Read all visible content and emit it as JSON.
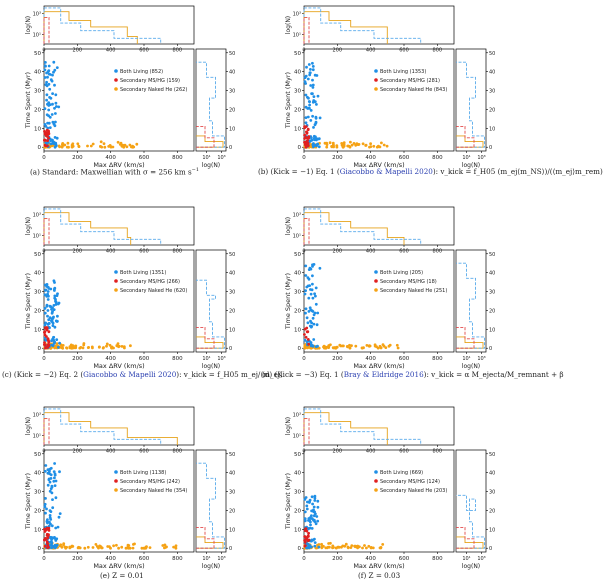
{
  "figure": {
    "xlabel": "Max ΔRV (km/s)",
    "ylabel_main": "Time Spent (Myr)",
    "ylabel_top": "log(N)",
    "xlabel_side": "log(N)",
    "colors": {
      "both_living": "#1f8fe6",
      "ms_hg": "#e02020",
      "naked_he": "#f5a214",
      "hist_he": "#e6a21a",
      "hist_both": "#58aaeb",
      "hist_ms": "#e24a4a"
    }
  },
  "captions": {
    "a": {
      "pre": "(a) Standard: Maxwellian with σ = 256 km s",
      "post": "",
      "cite": ""
    },
    "b": {
      "pre": "(b) (Kick = −1) Eq. 1 (",
      "cite": "Giacobbo & Mapelli 2020",
      "post": "): v_kick = f_H05 (m_ej⟨m_NS⟩)/(⟨m_ej⟩m_rem)"
    },
    "c": {
      "pre": "(c) (Kick = −2) Eq. 2 (",
      "cite": "Giacobbo & Mapelli 2020",
      "post": "): v_kick = f_H05 m_ej/⟨m_ej⟩"
    },
    "d": {
      "pre": "(d) (Kick = −3) Eq. 1 (",
      "cite": "Bray & Eldridge 2016",
      "post": "): v_kick = α M_ejecta/M_remnant + β"
    },
    "e": {
      "pre": "(e) Z = 0.01",
      "cite": "",
      "post": ""
    },
    "f": {
      "pre": "(f) Z = 0.03",
      "cite": "",
      "post": ""
    }
  },
  "chart_data": [
    {
      "type": "scatter",
      "panel": "a",
      "xlabel": "Max ΔRV (km/s)",
      "ylabel": "Time Spent (Myr)",
      "xlim": [
        0,
        900
      ],
      "ylim": [
        -2,
        52
      ],
      "xticks": [
        0,
        200,
        400,
        600,
        800
      ],
      "yticks": [
        0,
        10,
        20,
        30,
        40,
        50
      ],
      "series": [
        {
          "name": "Both Living (852)",
          "color": "#1f8fe6",
          "x_range": [
            5,
            100
          ],
          "y_range": [
            0,
            45
          ],
          "n": 80
        },
        {
          "name": "Secondary MS/HG (159)",
          "color": "#e02020",
          "x_range": [
            2,
            30
          ],
          "y_range": [
            0,
            11
          ],
          "n": 25
        },
        {
          "name": "Secondary Naked He (262)",
          "color": "#f5a214",
          "x_range": [
            5,
            560
          ],
          "y_range": [
            0,
            3
          ],
          "n": 90
        }
      ],
      "top_hist_ylabel": "log(N)",
      "side_hist_xlabel": "log(N)"
    },
    {
      "type": "scatter",
      "panel": "b",
      "xlabel": "Max ΔRV (km/s)",
      "ylabel": "Time Spent (Myr)",
      "xlim": [
        0,
        900
      ],
      "ylim": [
        -2,
        52
      ],
      "xticks": [
        0,
        200,
        400,
        600,
        800
      ],
      "yticks": [
        0,
        10,
        20,
        30,
        40,
        50
      ],
      "series": [
        {
          "name": "Both Living (1353)",
          "color": "#1f8fe6",
          "x_range": [
            5,
            100
          ],
          "y_range": [
            0,
            45
          ],
          "n": 90
        },
        {
          "name": "Secondary MS/HG (281)",
          "color": "#e02020",
          "x_range": [
            2,
            30
          ],
          "y_range": [
            0,
            11
          ],
          "n": 25
        },
        {
          "name": "Secondary Naked He (843)",
          "color": "#f5a214",
          "x_range": [
            5,
            500
          ],
          "y_range": [
            0,
            3
          ],
          "n": 100
        }
      ],
      "top_hist_ylabel": "log(N)",
      "side_hist_xlabel": "log(N)"
    },
    {
      "type": "scatter",
      "panel": "c",
      "xlabel": "Max ΔRV (km/s)",
      "ylabel": "Time Spent (Myr)",
      "xlim": [
        0,
        900
      ],
      "ylim": [
        -2,
        52
      ],
      "xticks": [
        0,
        200,
        400,
        600,
        800
      ],
      "yticks": [
        0,
        10,
        20,
        30,
        40,
        50
      ],
      "series": [
        {
          "name": "Both Living (1351)",
          "color": "#1f8fe6",
          "x_range": [
            5,
            100
          ],
          "y_range": [
            0,
            36
          ],
          "n": 90
        },
        {
          "name": "Secondary MS/HG (266)",
          "color": "#e02020",
          "x_range": [
            2,
            30
          ],
          "y_range": [
            0,
            11
          ],
          "n": 25
        },
        {
          "name": "Secondary Naked He (620)",
          "color": "#f5a214",
          "x_range": [
            5,
            520
          ],
          "y_range": [
            0,
            3
          ],
          "n": 100
        }
      ],
      "top_hist_ylabel": "log(N)",
      "side_hist_xlabel": "log(N)"
    },
    {
      "type": "scatter",
      "panel": "d",
      "xlabel": "Max ΔRV (km/s)",
      "ylabel": "Time Spent (Myr)",
      "xlim": [
        0,
        900
      ],
      "ylim": [
        -2,
        52
      ],
      "xticks": [
        0,
        200,
        400,
        600,
        800
      ],
      "yticks": [
        0,
        10,
        20,
        30,
        40,
        50
      ],
      "series": [
        {
          "name": "Both Living (205)",
          "color": "#1f8fe6",
          "x_range": [
            5,
            100
          ],
          "y_range": [
            0,
            45
          ],
          "n": 60
        },
        {
          "name": "Secondary MS/HG (18)",
          "color": "#e02020",
          "x_range": [
            2,
            30
          ],
          "y_range": [
            0,
            11
          ],
          "n": 8
        },
        {
          "name": "Secondary Naked He (251)",
          "color": "#f5a214",
          "x_range": [
            5,
            600
          ],
          "y_range": [
            0,
            3
          ],
          "n": 80
        }
      ],
      "top_hist_ylabel": "log(N)",
      "side_hist_xlabel": "log(N)"
    },
    {
      "type": "scatter",
      "panel": "e",
      "xlabel": "Max ΔRV (km/s)",
      "ylabel": "Time Spent (Myr)",
      "xlim": [
        0,
        900
      ],
      "ylim": [
        -2,
        52
      ],
      "xticks": [
        0,
        200,
        400,
        600,
        800
      ],
      "yticks": [
        0,
        10,
        20,
        30,
        40,
        50
      ],
      "series": [
        {
          "name": "Both Living (1138)",
          "color": "#1f8fe6",
          "x_range": [
            5,
            100
          ],
          "y_range": [
            0,
            45
          ],
          "n": 90
        },
        {
          "name": "Secondary MS/HG (242)",
          "color": "#e02020",
          "x_range": [
            2,
            30
          ],
          "y_range": [
            0,
            11
          ],
          "n": 25
        },
        {
          "name": "Secondary Naked He (354)",
          "color": "#f5a214",
          "x_range": [
            5,
            800
          ],
          "y_range": [
            0,
            3
          ],
          "n": 100
        }
      ],
      "top_hist_ylabel": "log(N)",
      "side_hist_xlabel": "log(N)"
    },
    {
      "type": "scatter",
      "panel": "f",
      "xlabel": "Max ΔRV (km/s)",
      "ylabel": "Time Spent (Myr)",
      "xlim": [
        0,
        900
      ],
      "ylim": [
        -2,
        52
      ],
      "xticks": [
        0,
        200,
        400,
        600,
        800
      ],
      "yticks": [
        0,
        10,
        20,
        30,
        40,
        50
      ],
      "series": [
        {
          "name": "Both Living (669)",
          "color": "#1f8fe6",
          "x_range": [
            5,
            100
          ],
          "y_range": [
            0,
            28
          ],
          "n": 70
        },
        {
          "name": "Secondary MS/HG (124)",
          "color": "#e02020",
          "x_range": [
            2,
            30
          ],
          "y_range": [
            0,
            11
          ],
          "n": 20
        },
        {
          "name": "Secondary Naked He (203)",
          "color": "#f5a214",
          "x_range": [
            5,
            500
          ],
          "y_range": [
            0,
            3
          ],
          "n": 80
        }
      ],
      "top_hist_ylabel": "log(N)",
      "side_hist_xlabel": "log(N)"
    }
  ]
}
